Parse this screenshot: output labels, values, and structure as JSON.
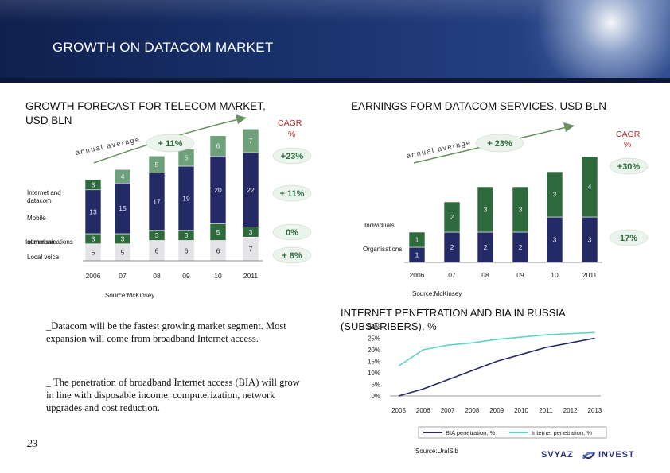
{
  "header": {
    "title": "GROWTH ON DATACOM MARKET"
  },
  "left_chart": {
    "title_line1": "GROWTH FORECAST FOR TELECOM MARKET,",
    "title_line2": "USD BLN",
    "cagr_label": "CAGR",
    "cagr_unit": "%",
    "annual_average_label": "annual average",
    "growth_label": "+ 11%",
    "segment_labels": [
      "Internet and datacom",
      "Mobile",
      "communications",
      "Local voice"
    ],
    "segment_label_overlap": "Interurban",
    "cagr_values": [
      "+23%",
      "+ 11%",
      "0%",
      "+ 8%"
    ],
    "source": "Source:McKinsey"
  },
  "right_chart": {
    "title": "EARNINGS FORM DATACOM SERVICES, USD BLN",
    "cagr_label": "CAGR",
    "cagr_unit": "%",
    "annual_average_label": "annual average",
    "growth_label": "+ 23%",
    "segment_labels": [
      "Individuals",
      "Organisations"
    ],
    "cagr_values": [
      "+30%",
      "17%"
    ],
    "source": "Source:McKinsey"
  },
  "bullets": [
    "_Datacom will be the fastest growing market segment. Most expansion will come from broadband Internet access.",
    "_ The penetration of broadband Internet access (BIA) will grow in line with disposable income, computerization, network upgrades and cost reduction."
  ],
  "line_chart": {
    "title_line1": "INTERNET PENETRATION AND BIA IN RUSSIA",
    "title_line2": "(SUBSCRIBERS), %",
    "source": "Source:UralSib"
  },
  "footer": {
    "page_number": "23",
    "logo_left": "SVYAZ",
    "logo_right": "INVEST"
  },
  "colors": {
    "navy": "#242a66",
    "green": "#2f6a3c",
    "teal": "#5fd3c5",
    "header": "#18306a"
  },
  "chart_data": [
    {
      "type": "bar",
      "title": "GROWTH FORECAST FOR TELECOM MARKET, USD BLN",
      "stacked": true,
      "categories": [
        "2006",
        "07",
        "08",
        "09",
        "10",
        "2011"
      ],
      "series": [
        {
          "name": "Local voice",
          "values": [
            5,
            5,
            6,
            6,
            6,
            7
          ]
        },
        {
          "name": "Interurban communications",
          "values": [
            3,
            3,
            3,
            3,
            5,
            3
          ]
        },
        {
          "name": "Mobile",
          "values": [
            13,
            15,
            17,
            19,
            20,
            22
          ]
        },
        {
          "name": "Internet and datacom",
          "values": [
            3,
            4,
            5,
            5,
            6,
            7
          ]
        }
      ],
      "xlabel": "",
      "ylabel": ""
    },
    {
      "type": "bar",
      "title": "EARNINGS FORM DATACOM SERVICES, USD BLN",
      "stacked": true,
      "categories": [
        "2006",
        "07",
        "08",
        "09",
        "10",
        "2011"
      ],
      "series": [
        {
          "name": "Organisations",
          "values": [
            1,
            2,
            2,
            2,
            3,
            3
          ]
        },
        {
          "name": "Individuals",
          "values": [
            1,
            2,
            3,
            3,
            3,
            4
          ]
        }
      ],
      "xlabel": "",
      "ylabel": ""
    },
    {
      "type": "line",
      "title": "INTERNET PENETRATION AND BIA IN RUSSIA (SUBSCRIBERS), %",
      "x": [
        "2005",
        "2006",
        "2007",
        "2008",
        "2009",
        "2010",
        "2011",
        "2012",
        "2013"
      ],
      "series": [
        {
          "name": "BIA penetration, %",
          "values": [
            0,
            3,
            7,
            11,
            15,
            18,
            21,
            23,
            25
          ]
        },
        {
          "name": "Internet penetration, %",
          "values": [
            13,
            20,
            22,
            23,
            24.5,
            25.5,
            26.5,
            27,
            27.5
          ]
        }
      ],
      "yticks": [
        "0%",
        "5%",
        "10%",
        "15%",
        "20%",
        "25%",
        "30%"
      ],
      "ylim": [
        0,
        30
      ]
    }
  ]
}
